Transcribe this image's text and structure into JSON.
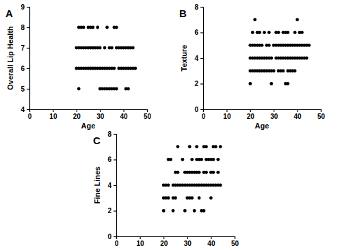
{
  "chart_data": [
    {
      "type": "scatter",
      "title": "A",
      "x_label": "Age",
      "y_label": "Overall Lip Health",
      "color": "#000000",
      "marker": "circle",
      "x": [
        21,
        22,
        23,
        25,
        26,
        27,
        29,
        33,
        36,
        37,
        20,
        21,
        22,
        23,
        24,
        25,
        26,
        27,
        28,
        29,
        30,
        32,
        34,
        35,
        37,
        38,
        39,
        40,
        41,
        42,
        43,
        44,
        20,
        21,
        22,
        23,
        24,
        25,
        26,
        27,
        28,
        29,
        30,
        31,
        32,
        33,
        34,
        35,
        36,
        38,
        39,
        40,
        41,
        42,
        43,
        44,
        45,
        21,
        30,
        31,
        32,
        33,
        34,
        35,
        36,
        37,
        41,
        42
      ],
      "values": [
        8,
        8,
        8,
        8,
        8,
        8,
        8,
        8,
        8,
        8,
        7,
        7,
        7,
        7,
        7,
        7,
        7,
        7,
        7,
        7,
        7,
        7,
        7,
        7,
        7,
        7,
        7,
        7,
        7,
        7,
        7,
        7,
        6,
        6,
        6,
        6,
        6,
        6,
        6,
        6,
        6,
        6,
        6,
        6,
        6,
        6,
        6,
        6,
        6,
        6,
        6,
        6,
        6,
        6,
        6,
        6,
        6,
        5,
        5,
        5,
        5,
        5,
        5,
        5,
        5,
        5,
        5,
        5
      ],
      "xlim": [
        0,
        50
      ],
      "xticks": [
        0,
        10,
        20,
        30,
        40,
        50
      ],
      "ylim": [
        4,
        9
      ],
      "yticks": [
        4,
        5,
        6,
        7,
        8,
        9
      ]
    },
    {
      "type": "scatter",
      "title": "B",
      "x_label": "Age",
      "y_label": "Texture",
      "color": "#000000",
      "marker": "circle",
      "x": [
        22,
        40,
        21,
        23,
        24,
        26,
        28,
        31,
        32,
        34,
        35,
        36,
        39,
        41,
        42,
        20,
        21,
        22,
        23,
        24,
        25,
        27,
        28,
        30,
        31,
        32,
        33,
        34,
        35,
        36,
        37,
        38,
        39,
        40,
        41,
        42,
        43,
        44,
        45,
        20,
        21,
        22,
        23,
        24,
        25,
        26,
        27,
        28,
        29,
        31,
        32,
        33,
        34,
        35,
        36,
        37,
        38,
        39,
        40,
        41,
        42,
        43,
        44,
        20,
        21,
        22,
        23,
        24,
        25,
        26,
        27,
        28,
        29,
        30,
        32,
        33,
        34,
        36,
        37,
        38,
        39,
        20,
        29,
        35,
        36
      ],
      "values": [
        7,
        7,
        6,
        6,
        6,
        6,
        6,
        6,
        6,
        6,
        6,
        6,
        6,
        6,
        6,
        5,
        5,
        5,
        5,
        5,
        5,
        5,
        5,
        5,
        5,
        5,
        5,
        5,
        5,
        5,
        5,
        5,
        5,
        5,
        5,
        5,
        5,
        5,
        5,
        4,
        4,
        4,
        4,
        4,
        4,
        4,
        4,
        4,
        4,
        4,
        4,
        4,
        4,
        4,
        4,
        4,
        4,
        4,
        4,
        4,
        4,
        4,
        4,
        3,
        3,
        3,
        3,
        3,
        3,
        3,
        3,
        3,
        3,
        3,
        3,
        3,
        3,
        3,
        3,
        3,
        3,
        2,
        2,
        2,
        2
      ],
      "xlim": [
        0,
        50
      ],
      "xticks": [
        0,
        10,
        20,
        30,
        40,
        50
      ],
      "ylim": [
        0,
        8
      ],
      "yticks": [
        0,
        2,
        4,
        6,
        8
      ]
    },
    {
      "type": "scatter",
      "title": "C",
      "x_label": "Age",
      "y_label": "Fine Lines",
      "color": "#000000",
      "marker": "circle",
      "x": [
        26,
        31,
        34,
        37,
        38,
        41,
        42,
        44,
        22,
        23,
        28,
        32,
        34,
        35,
        36,
        38,
        39,
        40,
        41,
        43,
        25,
        26,
        29,
        30,
        31,
        32,
        33,
        34,
        35,
        37,
        38,
        40,
        41,
        43,
        20,
        21,
        22,
        24,
        25,
        26,
        27,
        28,
        29,
        30,
        31,
        32,
        33,
        34,
        35,
        36,
        37,
        38,
        39,
        40,
        41,
        42,
        43,
        44,
        20,
        21,
        22,
        24,
        25,
        30,
        31,
        32,
        35,
        40,
        20,
        24,
        29,
        33,
        36,
        37
      ],
      "values": [
        7,
        7,
        7,
        7,
        7,
        7,
        7,
        7,
        6,
        6,
        6,
        6,
        6,
        6,
        6,
        6,
        6,
        6,
        6,
        6,
        5,
        5,
        5,
        5,
        5,
        5,
        5,
        5,
        5,
        5,
        5,
        5,
        5,
        5,
        4,
        4,
        4,
        4,
        4,
        4,
        4,
        4,
        4,
        4,
        4,
        4,
        4,
        4,
        4,
        4,
        4,
        4,
        4,
        4,
        4,
        4,
        4,
        4,
        3,
        3,
        3,
        3,
        3,
        3,
        3,
        3,
        3,
        3,
        2,
        2,
        2,
        2,
        2,
        2
      ],
      "xlim": [
        0,
        50
      ],
      "xticks": [
        0,
        10,
        20,
        30,
        40,
        50
      ],
      "ylim": [
        0,
        8
      ],
      "yticks": [
        0,
        2,
        4,
        6,
        8
      ]
    }
  ]
}
